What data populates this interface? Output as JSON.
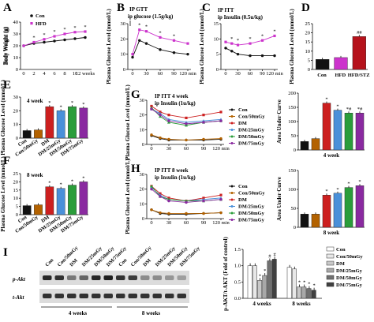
{
  "panels": {
    "A": "A",
    "B": "B",
    "C": "C",
    "D": "D",
    "E": "E",
    "F": "F",
    "G": "G",
    "H": "H",
    "I": "I"
  },
  "colors": {
    "black": "#111111",
    "con50": "#b36200",
    "dm": "#cc1f1f",
    "dm25": "#4a90d9",
    "dm50": "#2a9d3a",
    "dm75": "#8a2aa0",
    "stz": "#b5121b",
    "hfd": "#cc33cc"
  },
  "chart_data": [
    {
      "id": "A",
      "type": "line",
      "ylabel": "Body Weight (g)",
      "x": [
        0,
        2,
        4,
        6,
        8,
        10,
        12
      ],
      "xticks": [
        "0",
        "2",
        "4",
        "6",
        "8",
        "10",
        "12 weeks"
      ],
      "ylim": [
        0,
        40
      ],
      "yticks": [
        "0",
        "10",
        "20",
        "30",
        "40"
      ],
      "series": [
        {
          "name": "Con",
          "values": [
            20,
            22,
            23,
            24,
            25,
            26,
            27
          ]
        },
        {
          "name": "HFD",
          "values": [
            20,
            23,
            25.5,
            28,
            30,
            31.5,
            32
          ]
        }
      ],
      "annotations": [
        "*",
        "*",
        "*",
        "*",
        "*",
        "*"
      ]
    },
    {
      "id": "B",
      "type": "line",
      "title": "IP GTT",
      "subtitle": "ip glucose (1.5g/kg)",
      "ylabel": "Plasma Glucose Level (mmol/L)",
      "x": [
        0,
        15,
        30,
        60,
        90,
        120
      ],
      "xticks": [
        "0",
        "30",
        "60",
        "90",
        "120 min"
      ],
      "ylim": [
        0,
        30
      ],
      "yticks": [
        "0",
        "10",
        "20",
        "30"
      ],
      "series": [
        {
          "values": [
            8,
            19,
            17,
            13,
            11,
            10
          ]
        },
        {
          "values": [
            10,
            26,
            25,
            21,
            19,
            17
          ]
        }
      ],
      "annotations": [
        "*",
        "*",
        "*",
        "*"
      ]
    },
    {
      "id": "C",
      "type": "line",
      "title": "IP ITT",
      "subtitle": "ip Insulin (0.5u/kg)",
      "ylabel": "Plasma Glucose Level (mmol/L)",
      "x": [
        0,
        15,
        30,
        60,
        90,
        120
      ],
      "xticks": [
        "0",
        "30",
        "60",
        "90",
        "120 min"
      ],
      "ylim": [
        0,
        15
      ],
      "yticks": [
        "0",
        "5",
        "10",
        "15"
      ],
      "series": [
        {
          "values": [
            7,
            6,
            5,
            4.5,
            4.5,
            4.5
          ]
        },
        {
          "values": [
            9,
            8.5,
            8,
            8.5,
            9.5,
            11
          ]
        }
      ],
      "annotations": [
        "*",
        "*",
        "*",
        "*",
        "*"
      ]
    },
    {
      "id": "D",
      "type": "bar",
      "ylabel": "Plasma Glucose Level (mmol/L)",
      "categories": [
        "Con",
        "HFD",
        "HFD/STZ"
      ],
      "values": [
        5.5,
        6.5,
        18
      ],
      "ylim": [
        0,
        25
      ],
      "yticks": [
        "0",
        "5",
        "10",
        "15",
        "20",
        "25"
      ],
      "annotations": [
        "",
        "",
        "##"
      ]
    },
    {
      "id": "E",
      "type": "bar",
      "ylabel": "Plasma Glucose Level (mmol/L)",
      "inset": "4 week",
      "categories": [
        "Con",
        "Con/50mGy",
        "DM",
        "DM/25mGy",
        "DM/50mGy",
        "DM/75mGy"
      ],
      "values": [
        5.5,
        6,
        23,
        20,
        23,
        22
      ],
      "ylim": [
        0,
        30
      ],
      "yticks": [
        "0",
        "10",
        "20",
        "30"
      ],
      "annotations": [
        "",
        "",
        "*",
        "*",
        "*",
        "*"
      ]
    },
    {
      "id": "F",
      "type": "bar",
      "ylabel": "Plasma Glucose Level (mmol/L)",
      "inset": "8 week",
      "categories": [
        "Con",
        "Con/50mGy",
        "DM",
        "DM/25mGy",
        "DM/50mGy",
        "DM/75mGy"
      ],
      "values": [
        5.5,
        6,
        17,
        16,
        18,
        20
      ],
      "ylim": [
        0,
        25
      ],
      "yticks": [
        "0",
        "5",
        "10",
        "15",
        "20",
        "25"
      ],
      "annotations": [
        "",
        "",
        "*",
        "*",
        "*",
        "*"
      ]
    },
    {
      "id": "G",
      "type": "line",
      "title": "IP ITT   4 week",
      "subtitle": "ip Insulin (1u/kg)",
      "ylabel": "Plasma Glucose Level (mmol/L)",
      "x": [
        0,
        15,
        30,
        60,
        90,
        120
      ],
      "xticks": [
        "0",
        "30",
        "60",
        "90",
        "120 min"
      ],
      "ylim": [
        0,
        30
      ],
      "yticks": [
        "0",
        "10",
        "20",
        "30"
      ],
      "series": [
        {
          "name": "Con",
          "values": [
            6,
            4,
            3,
            3,
            3,
            3.5
          ]
        },
        {
          "name": "Con/50mGy",
          "values": [
            6.5,
            4.5,
            3.5,
            3,
            3.5,
            4
          ]
        },
        {
          "name": "DM",
          "values": [
            26,
            22,
            20,
            18,
            20,
            22
          ]
        },
        {
          "name": "DM/25mGy",
          "values": [
            24,
            21,
            17,
            15,
            16,
            17
          ]
        },
        {
          "name": "DM/50mGy",
          "values": [
            25,
            19,
            15,
            13,
            15,
            16
          ]
        },
        {
          "name": "DM/75mGy",
          "values": [
            24,
            20,
            16,
            14,
            15,
            16
          ]
        }
      ]
    },
    {
      "id": "G2",
      "type": "bar",
      "ylabel": "Area Under Curve",
      "xlabel": "4 week",
      "categories": [
        "Con",
        "Con/50mGy",
        "DM",
        "DM/25mGy",
        "DM/50mGy",
        "DM/75mGy"
      ],
      "values": [
        30,
        40,
        165,
        140,
        130,
        130
      ],
      "ylim": [
        0,
        200
      ],
      "yticks": [
        "0",
        "50",
        "100",
        "150",
        "200"
      ],
      "annotations": [
        "",
        "",
        "*",
        "*",
        "*#",
        "*#"
      ]
    },
    {
      "id": "H",
      "type": "line",
      "title": "IP ITT   8 week",
      "subtitle": "ip Insulin (1u/kg)",
      "ylabel": "Plasma Glucose Level (mmol/L)",
      "x": [
        0,
        15,
        30,
        60,
        90,
        120
      ],
      "xticks": [
        "0",
        "30",
        "60",
        "90",
        "120 min"
      ],
      "ylim": [
        0,
        30
      ],
      "yticks": [
        "0",
        "10",
        "20",
        "30"
      ],
      "series": [
        {
          "name": "Con",
          "values": [
            6,
            3.5,
            3,
            3,
            3.5,
            4
          ]
        },
        {
          "name": "Con/50mGy",
          "values": [
            6,
            4,
            3.5,
            3.5,
            3.5,
            4
          ]
        },
        {
          "name": "DM",
          "values": [
            22,
            17,
            14,
            12,
            14,
            16
          ]
        },
        {
          "name": "DM/25mGy",
          "values": [
            21,
            16,
            13,
            12,
            13,
            14
          ]
        },
        {
          "name": "DM/50mGy",
          "values": [
            22,
            15,
            13,
            12,
            12,
            13
          ]
        },
        {
          "name": "DM/75mGy",
          "values": [
            20,
            15,
            12,
            11,
            12,
            13
          ]
        }
      ]
    },
    {
      "id": "H2",
      "type": "bar",
      "ylabel": "Area Under Curve",
      "xlabel": "8 week",
      "categories": [
        "Con",
        "Con/50mGy",
        "DM",
        "DM/25mGy",
        "DM/50mGy",
        "DM/75mGy"
      ],
      "values": [
        35,
        35,
        85,
        90,
        105,
        110
      ],
      "ylim": [
        0,
        150
      ],
      "yticks": [
        "0",
        "50",
        "100",
        "150"
      ],
      "annotations": [
        "",
        "",
        "*",
        "*",
        "*",
        "*"
      ]
    },
    {
      "id": "I",
      "type": "bar",
      "ylabel": "p-AKT/t-AKT (Fold of control)",
      "categories": [
        "4 weeks",
        "8 weeks"
      ],
      "ylim": [
        0,
        1.5
      ],
      "yticks": [
        "0.0",
        "0.5",
        "1.0",
        "1.5"
      ],
      "series": [
        {
          "name": "Con",
          "values": [
            1.0,
            0.95
          ]
        },
        {
          "name": "Con/50mGy",
          "values": [
            1.0,
            0.9
          ]
        },
        {
          "name": "DM",
          "values": [
            0.55,
            0.35
          ]
        },
        {
          "name": "DM/25mGy",
          "values": [
            0.7,
            0.35
          ]
        },
        {
          "name": "DM/50mGy",
          "values": [
            1.15,
            0.3
          ]
        },
        {
          "name": "DM/75mGy",
          "values": [
            1.2,
            0.25
          ]
        }
      ],
      "annotations": [
        [
          "",
          "",
          "*",
          "*",
          "#",
          "#"
        ],
        [
          "",
          "",
          "*",
          "*",
          "*",
          "*"
        ]
      ]
    }
  ],
  "blot": {
    "lanes": [
      "Con",
      "Con/50mGy",
      "DM",
      "DM/25mGy",
      "DM/50mGy",
      "DM/75mGy",
      "Con",
      "Con/50mGy",
      "DM",
      "DM/25mGy",
      "DM/50mGy",
      "DM/75mGy"
    ],
    "rows": [
      "p-Akt",
      "t-Akt"
    ],
    "groups": [
      "4 weeks",
      "8 weeks"
    ]
  }
}
